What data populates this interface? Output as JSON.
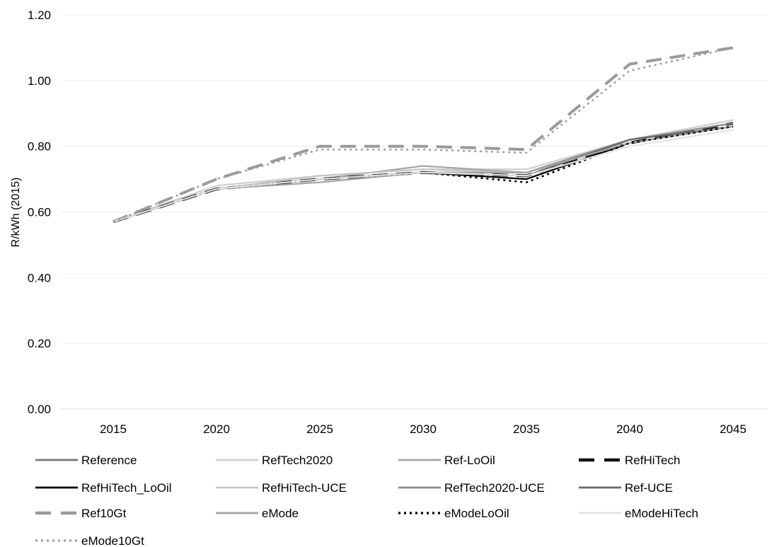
{
  "chart_data": {
    "type": "line",
    "title": "",
    "xlabel": "",
    "ylabel": "R/kWh (2015)",
    "x": [
      2015,
      2020,
      2025,
      2030,
      2035,
      2040,
      2045
    ],
    "ylim": [
      0,
      1.2
    ],
    "yticks": [
      "0.00",
      "0.20",
      "0.40",
      "0.60",
      "0.80",
      "1.00",
      "1.20"
    ],
    "grid": true,
    "legend": "bottom",
    "series": [
      {
        "name": "Reference",
        "color": "#777777",
        "dash": "solid",
        "values": [
          0.57,
          0.67,
          0.7,
          0.72,
          0.71,
          0.82,
          0.87
        ]
      },
      {
        "name": "RefTech2020",
        "color": "#cfcfcf",
        "dash": "solid",
        "values": [
          0.57,
          0.68,
          0.71,
          0.73,
          0.73,
          0.82,
          0.88
        ]
      },
      {
        "name": "Ref-LoOil",
        "color": "#a6a6a6",
        "dash": "solid",
        "values": [
          0.57,
          0.67,
          0.7,
          0.74,
          0.72,
          0.82,
          0.87
        ]
      },
      {
        "name": "RefHiTech",
        "color": "#111111",
        "dash": "longdash",
        "values": [
          0.57,
          0.67,
          0.7,
          0.72,
          0.71,
          0.81,
          0.87
        ]
      },
      {
        "name": "RefHiTech_LoOil",
        "color": "#000000",
        "dash": "solid",
        "values": [
          0.57,
          0.67,
          0.7,
          0.72,
          0.7,
          0.81,
          0.86
        ]
      },
      {
        "name": "RefHiTech-UCE",
        "color": "#c4c4c4",
        "dash": "solid",
        "values": [
          0.57,
          0.67,
          0.71,
          0.73,
          0.72,
          0.81,
          0.86
        ]
      },
      {
        "name": "RefTech2020-UCE",
        "color": "#8c8c8c",
        "dash": "solid",
        "values": [
          0.57,
          0.67,
          0.7,
          0.72,
          0.72,
          0.82,
          0.87
        ]
      },
      {
        "name": "Ref-UCE",
        "color": "#666666",
        "dash": "solid",
        "values": [
          0.57,
          0.67,
          0.7,
          0.72,
          0.71,
          0.82,
          0.86
        ]
      },
      {
        "name": "Ref10Gt",
        "color": "#9a9a9a",
        "dash": "longdash",
        "values": [
          0.57,
          0.7,
          0.8,
          0.8,
          0.79,
          1.05,
          1.1
        ]
      },
      {
        "name": "eMode",
        "color": "#a3a3a3",
        "dash": "solid",
        "values": [
          0.57,
          0.67,
          0.69,
          0.72,
          0.72,
          0.81,
          0.86
        ]
      },
      {
        "name": "eModeLoOil",
        "color": "#000000",
        "dash": "dotted",
        "values": [
          0.57,
          0.67,
          0.7,
          0.72,
          0.69,
          0.81,
          0.86
        ]
      },
      {
        "name": "eModeHiTech",
        "color": "#e3e3e3",
        "dash": "solid",
        "values": [
          0.57,
          0.67,
          0.7,
          0.72,
          0.71,
          0.8,
          0.85
        ]
      },
      {
        "name": "eMode10Gt",
        "color": "#a0a0a0",
        "dash": "dotted",
        "values": [
          0.57,
          0.7,
          0.79,
          0.79,
          0.78,
          1.03,
          1.1
        ]
      }
    ]
  }
}
